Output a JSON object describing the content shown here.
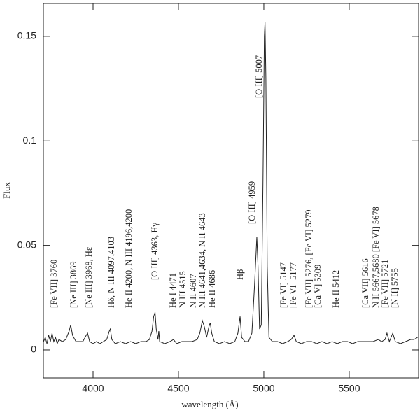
{
  "chart_data": {
    "type": "line",
    "xlabel": "wavelength (Å)",
    "ylabel": "Flux",
    "xlim": [
      3709,
      5906
    ],
    "ylim": [
      -0.0134,
      0.1657
    ],
    "xticks": [
      4000,
      4500,
      5000,
      5500
    ],
    "yticks": [
      0,
      0.05,
      0.1,
      0.15
    ],
    "annotations": [
      "[Fe VII] 3760",
      "[Ne III] 3869",
      "[Ne III] 3968, Hε",
      "Hδ, N III 4097,4103",
      "He II 4200, N III 4196,4200",
      "[O III] 4363, Hγ",
      "He I 4471",
      "N III 4515",
      "N II 4607",
      "N III 4641,4634, N II 4643",
      "He II 4686",
      "Hβ",
      "[O III] 4959",
      "[O III] 5007",
      "[Fe VI] 5147",
      "[Fe VI] 5177",
      "[Fe VII] 5276, [Fe VI] 5279",
      "[Ca V] 5309",
      "He II 5412",
      "[Ca VII] 5616",
      "N II 5667,5680 [Fe VI] 5678",
      "[Fe VII] 5721",
      "[N II] 5755"
    ],
    "series": [
      {
        "color": "#222222",
        "x": [
          3710,
          3720,
          3730,
          3740,
          3750,
          3760,
          3770,
          3780,
          3790,
          3800,
          3820,
          3840,
          3860,
          3869,
          3880,
          3900,
          3920,
          3940,
          3960,
          3968,
          3980,
          4000,
          4020,
          4040,
          4060,
          4080,
          4095,
          4101,
          4110,
          4130,
          4160,
          4190,
          4220,
          4250,
          4280,
          4310,
          4330,
          4345,
          4355,
          4363,
          4370,
          4380,
          4385,
          4390,
          4420,
          4450,
          4471,
          4490,
          4520,
          4550,
          4580,
          4610,
          4625,
          4640,
          4652,
          4665,
          4678,
          4686,
          4695,
          4710,
          4740,
          4770,
          4800,
          4830,
          4848,
          4861,
          4870,
          4890,
          4910,
          4930,
          4945,
          4959,
          4966,
          4975,
          4985,
          4995,
          5003,
          5007,
          5012,
          5020,
          5030,
          5050,
          5080,
          5110,
          5140,
          5160,
          5177,
          5190,
          5220,
          5250,
          5280,
          5310,
          5340,
          5370,
          5400,
          5430,
          5460,
          5490,
          5520,
          5550,
          5580,
          5610,
          5640,
          5670,
          5690,
          5710,
          5721,
          5735,
          5755,
          5770,
          5800,
          5830,
          5860,
          5880,
          5900
        ],
        "values": [
          0.004,
          0.006,
          0.003,
          0.007,
          0.004,
          0.008,
          0.004,
          0.006,
          0.003,
          0.005,
          0.004,
          0.005,
          0.009,
          0.012,
          0.007,
          0.004,
          0.004,
          0.004,
          0.007,
          0.008,
          0.004,
          0.003,
          0.004,
          0.003,
          0.004,
          0.005,
          0.009,
          0.01,
          0.005,
          0.003,
          0.004,
          0.003,
          0.004,
          0.003,
          0.004,
          0.004,
          0.005,
          0.009,
          0.016,
          0.018,
          0.01,
          0.005,
          0.009,
          0.004,
          0.003,
          0.004,
          0.005,
          0.003,
          0.004,
          0.004,
          0.004,
          0.005,
          0.008,
          0.014,
          0.011,
          0.006,
          0.011,
          0.013,
          0.008,
          0.004,
          0.003,
          0.004,
          0.003,
          0.004,
          0.008,
          0.016,
          0.006,
          0.004,
          0.004,
          0.008,
          0.03,
          0.054,
          0.04,
          0.01,
          0.012,
          0.08,
          0.15,
          0.157,
          0.13,
          0.04,
          0.006,
          0.004,
          0.004,
          0.003,
          0.004,
          0.005,
          0.007,
          0.004,
          0.003,
          0.004,
          0.004,
          0.003,
          0.004,
          0.003,
          0.004,
          0.003,
          0.004,
          0.004,
          0.003,
          0.004,
          0.004,
          0.004,
          0.004,
          0.005,
          0.004,
          0.005,
          0.008,
          0.004,
          0.008,
          0.004,
          0.003,
          0.004,
          0.005,
          0.005,
          0.006
        ]
      }
    ]
  }
}
